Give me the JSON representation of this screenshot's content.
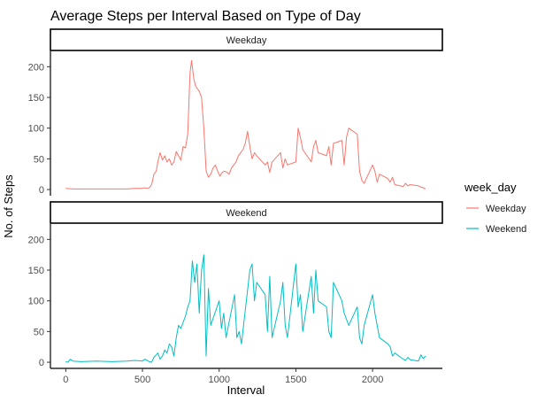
{
  "chart_data": {
    "type": "line",
    "title": "Average Steps per Interval Based on Type of Day",
    "xlabel": "Interval",
    "ylabel": "No. of Steps",
    "xlim": [
      -100,
      2455
    ],
    "ylim": [
      -10,
      225
    ],
    "x_ticks": [
      0,
      500,
      1000,
      1500,
      2000
    ],
    "y_ticks": [
      0,
      50,
      100,
      150,
      200
    ],
    "grid": false,
    "legend": {
      "title": "week_day",
      "position": "right",
      "entries": [
        "Weekday",
        "Weekend"
      ]
    },
    "panels": [
      {
        "strip_label": "Weekday",
        "series": {
          "name": "Weekday",
          "color": "#F8766D",
          "x": [
            0,
            50,
            100,
            150,
            200,
            250,
            300,
            350,
            400,
            450,
            500,
            515,
            530,
            545,
            560,
            575,
            590,
            600,
            615,
            630,
            645,
            660,
            675,
            690,
            705,
            720,
            735,
            750,
            765,
            780,
            795,
            810,
            820,
            835,
            845,
            855,
            870,
            885,
            900,
            915,
            930,
            945,
            960,
            975,
            990,
            1005,
            1020,
            1035,
            1050,
            1065,
            1080,
            1095,
            1110,
            1125,
            1140,
            1155,
            1170,
            1185,
            1200,
            1215,
            1230,
            1245,
            1300,
            1315,
            1330,
            1345,
            1400,
            1415,
            1430,
            1445,
            1500,
            1515,
            1530,
            1545,
            1600,
            1615,
            1630,
            1645,
            1700,
            1715,
            1730,
            1745,
            1800,
            1815,
            1830,
            1845,
            1900,
            1915,
            1930,
            1945,
            2000,
            2015,
            2030,
            2045,
            2100,
            2115,
            2130,
            2145,
            2200,
            2215,
            2230,
            2245,
            2300,
            2315,
            2330,
            2345
          ],
          "y": [
            2,
            1,
            1,
            1,
            1,
            1,
            1,
            1,
            1,
            2,
            2,
            3,
            2,
            3,
            8,
            25,
            30,
            45,
            60,
            48,
            55,
            45,
            50,
            40,
            45,
            62,
            55,
            48,
            70,
            68,
            90,
            190,
            210,
            180,
            170,
            165,
            160,
            150,
            100,
            30,
            20,
            25,
            35,
            40,
            30,
            22,
            28,
            30,
            28,
            25,
            35,
            40,
            45,
            55,
            60,
            65,
            75,
            95,
            70,
            50,
            60,
            55,
            40,
            45,
            28,
            45,
            60,
            35,
            50,
            40,
            45,
            100,
            85,
            65,
            45,
            70,
            80,
            60,
            55,
            70,
            40,
            75,
            80,
            40,
            85,
            100,
            90,
            30,
            15,
            10,
            40,
            30,
            12,
            25,
            18,
            12,
            20,
            8,
            5,
            10,
            6,
            8,
            6,
            4,
            3,
            1
          ],
          "x_note": "",
          "y_note": ""
        }
      },
      {
        "strip_label": "Weekend",
        "series": {
          "name": "Weekend",
          "color": "#00BFC4",
          "x": [
            0,
            15,
            30,
            45,
            100,
            200,
            300,
            400,
            450,
            500,
            515,
            530,
            545,
            560,
            575,
            590,
            600,
            615,
            630,
            645,
            660,
            675,
            690,
            705,
            720,
            735,
            750,
            765,
            780,
            795,
            810,
            825,
            840,
            855,
            870,
            885,
            900,
            915,
            930,
            945,
            1000,
            1015,
            1030,
            1045,
            1100,
            1115,
            1130,
            1145,
            1200,
            1215,
            1230,
            1245,
            1300,
            1315,
            1330,
            1345,
            1400,
            1415,
            1430,
            1445,
            1500,
            1515,
            1530,
            1545,
            1600,
            1615,
            1630,
            1645,
            1700,
            1715,
            1730,
            1745,
            1800,
            1815,
            1830,
            1845,
            1900,
            1915,
            1930,
            1945,
            2000,
            2015,
            2030,
            2045,
            2100,
            2115,
            2130,
            2145,
            2200,
            2215,
            2230,
            2245,
            2300,
            2315,
            2330,
            2345
          ],
          "y": [
            1,
            0,
            5,
            2,
            1,
            2,
            1,
            2,
            3,
            2,
            5,
            3,
            1,
            0,
            8,
            12,
            15,
            5,
            10,
            20,
            15,
            30,
            25,
            10,
            40,
            60,
            55,
            65,
            75,
            90,
            100,
            165,
            130,
            160,
            80,
            150,
            175,
            10,
            120,
            60,
            100,
            55,
            80,
            40,
            110,
            40,
            50,
            30,
            150,
            160,
            100,
            130,
            110,
            50,
            140,
            40,
            100,
            130,
            60,
            40,
            160,
            90,
            110,
            50,
            140,
            80,
            150,
            100,
            90,
            50,
            40,
            130,
            100,
            80,
            70,
            60,
            90,
            40,
            30,
            60,
            110,
            80,
            60,
            40,
            30,
            25,
            10,
            15,
            5,
            3,
            8,
            4,
            2,
            12,
            6,
            10
          ],
          "x_note": "",
          "y_note": ""
        }
      }
    ]
  }
}
